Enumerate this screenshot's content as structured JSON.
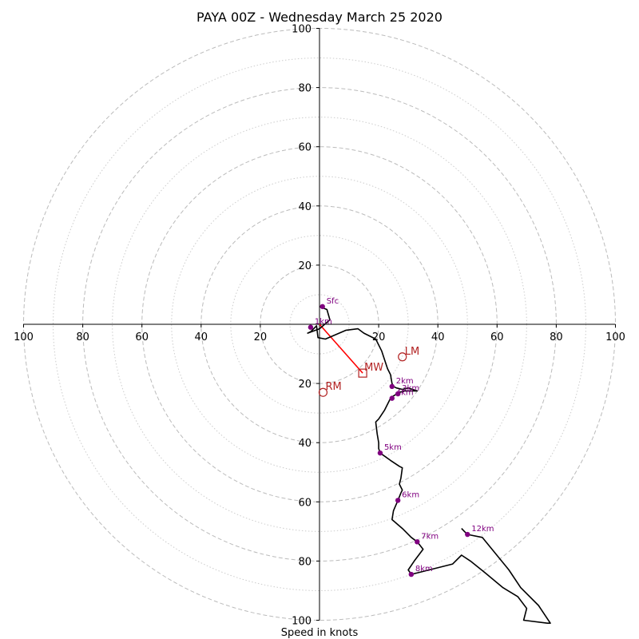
{
  "chart_data": {
    "type": "hodograph",
    "title": "PAYA 00Z - Wednesday March 25 2020",
    "xlabel": "Speed in knots",
    "xlim": [
      -100,
      100
    ],
    "ylim": [
      -100,
      100
    ],
    "x_ticks": [
      "100",
      "80",
      "60",
      "40",
      "20",
      "20",
      "40",
      "60",
      "80",
      "100"
    ],
    "x_tick_values": [
      -100,
      -80,
      -60,
      -40,
      -20,
      20,
      40,
      60,
      80,
      100
    ],
    "y_ticks": [
      "100",
      "80",
      "60",
      "40",
      "20",
      "20",
      "40",
      "60",
      "80",
      "100"
    ],
    "y_tick_values": [
      100,
      80,
      60,
      40,
      20,
      -20,
      -40,
      -60,
      -80,
      -100
    ],
    "rings_dashed": [
      20,
      40,
      60,
      80,
      100
    ],
    "rings_dotted": [
      10,
      30,
      50,
      70,
      90
    ],
    "colors": {
      "trace": "#000000",
      "height_markers": "#800080",
      "motion": "#b22222",
      "grid": "#bbbbbb"
    },
    "trace": [
      [
        0,
        6
      ],
      [
        2.5,
        5
      ],
      [
        3.5,
        1.5
      ],
      [
        0,
        -1.5
      ],
      [
        -4,
        -3
      ],
      [
        -3,
        -2.5
      ],
      [
        -1,
        -0.5
      ],
      [
        -0.5,
        -4.5
      ],
      [
        2,
        -5
      ],
      [
        9,
        -2
      ],
      [
        13,
        -1.5
      ],
      [
        15,
        -3
      ],
      [
        19,
        -5
      ],
      [
        21,
        -9
      ],
      [
        22,
        -12
      ],
      [
        23,
        -15
      ],
      [
        24,
        -17
      ],
      [
        24.5,
        -20
      ],
      [
        25,
        -21
      ],
      [
        26,
        -21.5
      ],
      [
        28,
        -22
      ],
      [
        30,
        -21.5
      ],
      [
        33,
        -22.5
      ],
      [
        29,
        -22.5
      ],
      [
        27,
        -23
      ],
      [
        24.5,
        -24.5
      ],
      [
        24,
        -25
      ],
      [
        22,
        -29
      ],
      [
        20,
        -32
      ],
      [
        19,
        -33
      ],
      [
        19.5,
        -37
      ],
      [
        20,
        -40
      ],
      [
        20,
        -42
      ],
      [
        20.5,
        -43.5
      ],
      [
        24,
        -46
      ],
      [
        27,
        -48
      ],
      [
        28,
        -48.5
      ],
      [
        27.5,
        -52
      ],
      [
        27,
        -54
      ],
      [
        28,
        -56
      ],
      [
        27.5,
        -57
      ],
      [
        26.5,
        -59.5
      ],
      [
        25,
        -63
      ],
      [
        24.5,
        -66
      ],
      [
        28,
        -69
      ],
      [
        31,
        -72
      ],
      [
        33,
        -73.5
      ],
      [
        35,
        -76
      ],
      [
        32,
        -80
      ],
      [
        30,
        -83
      ],
      [
        31,
        -84.5
      ],
      [
        45,
        -81
      ],
      [
        48,
        -78
      ],
      [
        51,
        -80
      ],
      [
        56,
        -84
      ],
      [
        62,
        -89
      ],
      [
        67,
        -92
      ],
      [
        70,
        -96
      ],
      [
        69,
        -100
      ],
      [
        77,
        -101
      ],
      [
        78,
        -101
      ],
      [
        74,
        -95
      ],
      [
        68,
        -89
      ],
      [
        64,
        -83
      ],
      [
        55,
        -72
      ],
      [
        50,
        -71
      ],
      [
        49,
        -70
      ],
      [
        48,
        -69
      ]
    ],
    "height_markers": [
      {
        "label": "Sfc",
        "u": 1,
        "v": 6
      },
      {
        "label": "1km",
        "u": -3,
        "v": -1
      },
      {
        "label": "2km",
        "u": 24.5,
        "v": -21
      },
      {
        "label": "3km",
        "u": 26.5,
        "v": -23.5
      },
      {
        "label": "4km",
        "u": 24.5,
        "v": -25
      },
      {
        "label": "5km",
        "u": 20.5,
        "v": -43.5
      },
      {
        "label": "6km",
        "u": 26.5,
        "v": -59.5
      },
      {
        "label": "7km",
        "u": 33,
        "v": -73.5
      },
      {
        "label": "8km",
        "u": 31,
        "v": -84.5
      },
      {
        "label": "12km",
        "u": 50,
        "v": -71
      }
    ],
    "storm_motion": {
      "lm": {
        "label": "LM",
        "u": 28,
        "v": -11
      },
      "rm": {
        "label": "RM",
        "u": 1.2,
        "v": -23
      },
      "mw": {
        "label": "MW",
        "u": 14.6,
        "v": -16.5
      },
      "shear_vector": [
        [
          0,
          0
        ],
        [
          14.6,
          -16.5
        ]
      ]
    }
  }
}
